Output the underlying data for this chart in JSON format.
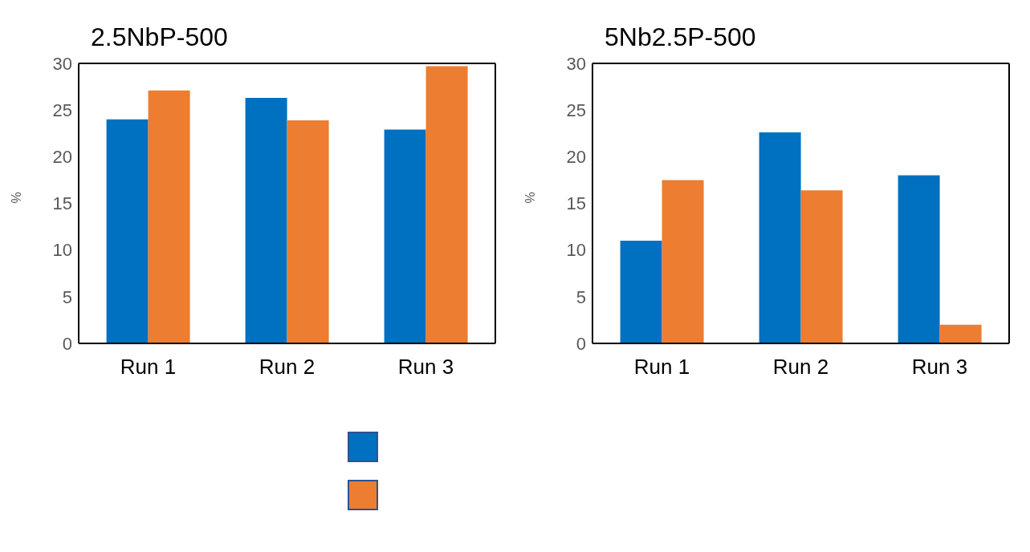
{
  "chart_data": [
    {
      "type": "bar",
      "title": "2.5NbP-500",
      "ylabel": "%",
      "categories": [
        "Run 1",
        "Run 2",
        "Run 3"
      ],
      "series": [
        {
          "color": "#0070c0",
          "values": [
            24.0,
            26.3,
            22.9
          ]
        },
        {
          "color": "#ed7d31",
          "values": [
            27.1,
            23.9,
            29.7
          ]
        }
      ],
      "ylim": [
        0,
        30
      ],
      "yticks": [
        0,
        5,
        10,
        15,
        20,
        25,
        30
      ],
      "grid": false
    },
    {
      "type": "bar",
      "title": "5Nb2.5P-500",
      "ylabel": "%",
      "categories": [
        "Run 1",
        "Run 2",
        "Run 3"
      ],
      "series": [
        {
          "color": "#0070c0",
          "values": [
            11.0,
            22.6,
            18.0
          ]
        },
        {
          "color": "#ed7d31",
          "values": [
            17.5,
            16.4,
            2.0
          ]
        }
      ],
      "ylim": [
        0,
        30
      ],
      "yticks": [
        0,
        5,
        10,
        15,
        20,
        25,
        30
      ],
      "grid": false
    }
  ]
}
